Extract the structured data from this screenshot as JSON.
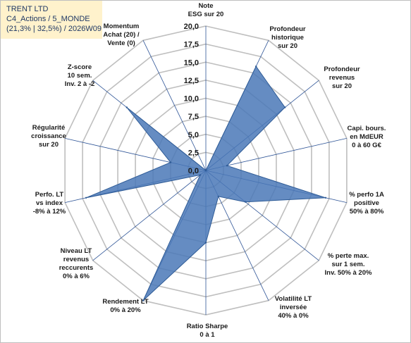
{
  "title_box": {
    "line1": "TRENT LTD",
    "line2": "C4_Actions / 5_MONDE",
    "line3": "(21,3% | 32,5%) / 2026W09"
  },
  "colors": {
    "fill": "#4a78b7",
    "stroke": "#2e5b96",
    "grid": "#bfbfbf",
    "spokes": "#2f5597",
    "title_bg": "#fff2cc",
    "title_text": "#1f3864"
  },
  "chart_data": {
    "type": "radar",
    "title": "",
    "rmin": 0,
    "rmax": 20,
    "ticks": [
      "0,0",
      "2,5",
      "5,0",
      "7,5",
      "10,0",
      "12,5",
      "15,0",
      "17,5",
      "20,0"
    ],
    "categories": [
      [
        "Note",
        "ESG sur 20"
      ],
      [
        "Profondeur",
        "historique",
        "sur 20"
      ],
      [
        "Profondeur",
        "revenus",
        "sur 20"
      ],
      [
        "Capi. bours.",
        "en MdEUR",
        "0 à 60 G€"
      ],
      [
        "% perfo 1A",
        "positive",
        "50% à 80%"
      ],
      [
        "% perte max.",
        "sur 1 sem.",
        "Inv. 50% à 20%"
      ],
      [
        "Volatilité LT",
        "inversée",
        "40% à 0%"
      ],
      [
        "Ratio Sharpe",
        "0 à 1"
      ],
      [
        "Rendement LT",
        "0% à 20%"
      ],
      [
        "Niveau LT",
        "revenus",
        "reccurents",
        "0% à 6%"
      ],
      [
        "Perfo. LT",
        "vs index",
        "-8% à 12%"
      ],
      [
        "Régularité",
        "croissance",
        "sur 20"
      ],
      [
        "Z-score",
        "10 sem.",
        "Inv. 2 à -2"
      ],
      [
        "Momentum",
        "Achat (20) /",
        "Vente (0)"
      ]
    ],
    "values": [
      0,
      16,
      14,
      3,
      17,
      7,
      4,
      10,
      20,
      1,
      17,
      5,
      14,
      0
    ],
    "grid": true,
    "legend": "none"
  }
}
